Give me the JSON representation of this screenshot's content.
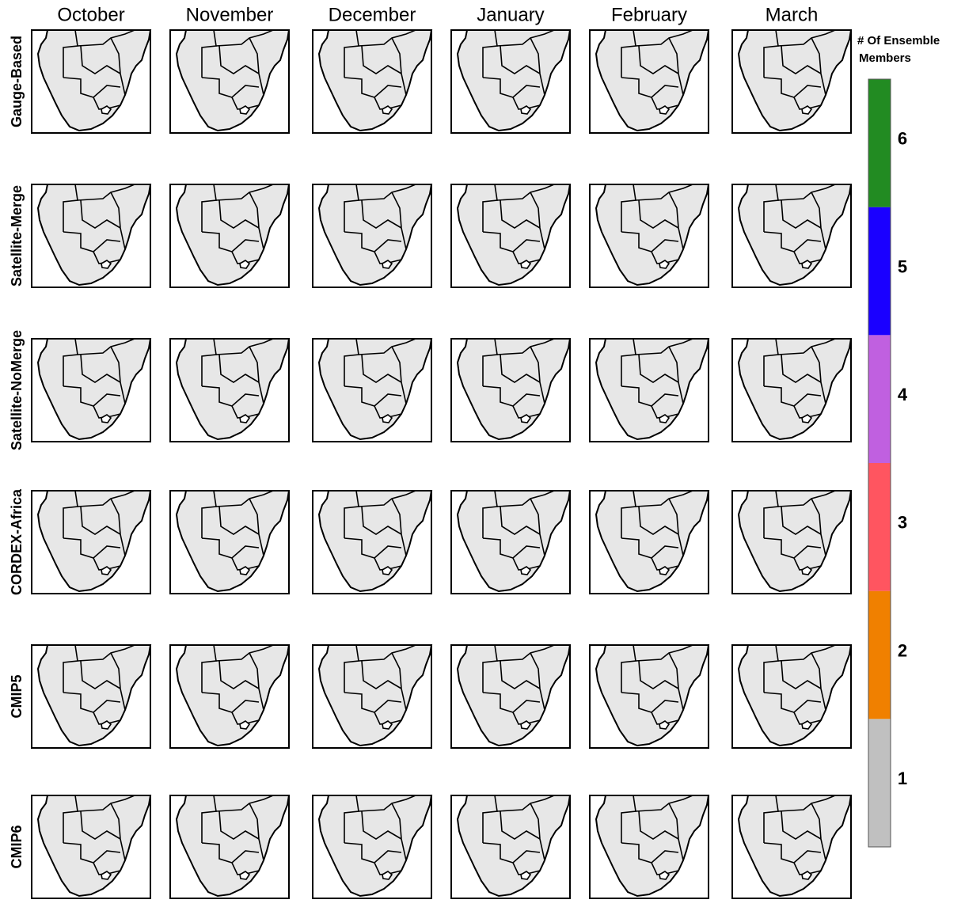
{
  "columns": [
    "October",
    "November",
    "December",
    "January",
    "February",
    "March"
  ],
  "rows": [
    "Gauge-Based",
    "Satellite-Merge",
    "Satellite-NoMerge",
    "CORDEX-Africa",
    "CMIP5",
    "CMIP6"
  ],
  "colorbar": {
    "title_lines": [
      "# Of Ensemble",
      "Members"
    ],
    "ticks": [
      1,
      2,
      3,
      4,
      5,
      6
    ],
    "colors": [
      "#c0c0c0",
      "#f08000",
      "#ff5560",
      "#c060e0",
      "#1a00ff",
      "#228b22"
    ]
  }
}
